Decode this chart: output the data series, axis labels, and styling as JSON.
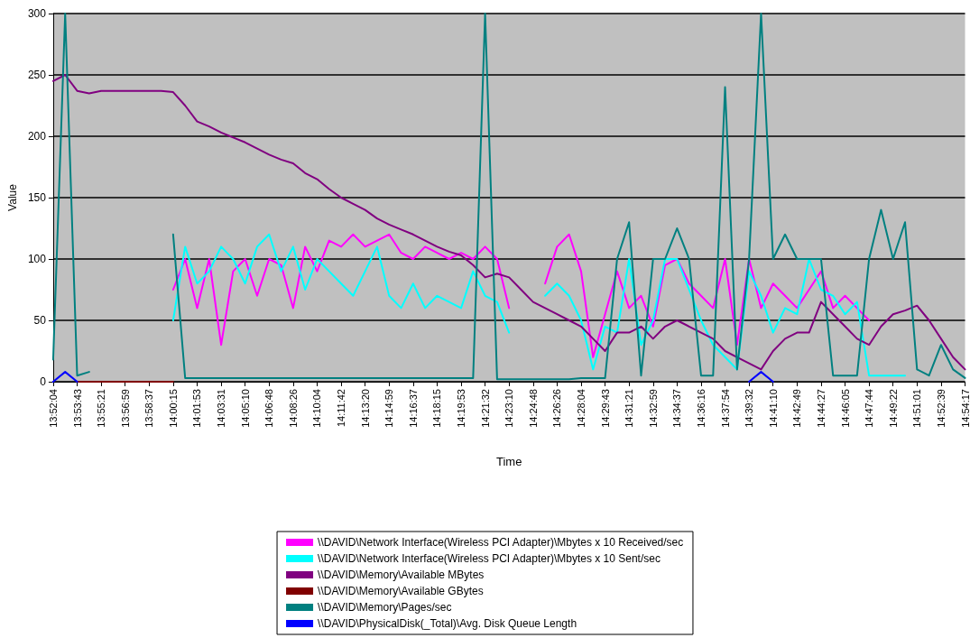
{
  "chart_data": {
    "type": "line",
    "xlabel": "Time",
    "ylabel": "Value",
    "categories": [
      "13:52:04",
      null,
      "13:53:43",
      null,
      "13:55:21",
      null,
      "13:56:59",
      null,
      "13:58:37",
      null,
      "14:00:15",
      null,
      "14:01:53",
      null,
      "14:03:31",
      null,
      "14:05:10",
      null,
      "14:06:48",
      null,
      "14:08:26",
      null,
      "14:10:04",
      null,
      "14:11:42",
      null,
      "14:13:20",
      null,
      "14:14:59",
      null,
      "14:16:37",
      null,
      "14:18:15",
      null,
      "14:19:53",
      null,
      "14:21:32",
      null,
      "14:23:10",
      null,
      "14:24:48",
      null,
      "14:26:26",
      null,
      "14:28:04",
      null,
      "14:29:43",
      null,
      "14:31:21",
      null,
      "14:32:59",
      null,
      "14:34:37",
      null,
      "14:36:16",
      null,
      "14:37:54",
      null,
      "14:39:32",
      null,
      "14:41:10",
      null,
      "14:42:49",
      null,
      "14:44:27",
      null,
      "14:46:05",
      null,
      "14:47:44",
      null,
      "14:49:22",
      null,
      "14:51:01",
      null,
      "14:52:39",
      null,
      "14:54:17"
    ],
    "series": [
      {
        "name": "\\\\DAVID\\Network Interface(Wireless PCI Adapter)\\Mbytes x 10 Received/sec",
        "color": "#ff00ff",
        "values": [
          null,
          null,
          null,
          null,
          null,
          null,
          null,
          null,
          null,
          null,
          75,
          100,
          60,
          100,
          30,
          90,
          100,
          70,
          100,
          95,
          60,
          110,
          90,
          115,
          110,
          120,
          110,
          115,
          120,
          105,
          100,
          110,
          105,
          100,
          105,
          100,
          110,
          100,
          60,
          null,
          null,
          80,
          110,
          120,
          90,
          20,
          55,
          90,
          60,
          70,
          45,
          95,
          100,
          80,
          70,
          60,
          100,
          30,
          100,
          60,
          80,
          70,
          60,
          75,
          90,
          60,
          70,
          60,
          50,
          null,
          null,
          null,
          null,
          null,
          null,
          null,
          null
        ]
      },
      {
        "name": "\\\\DAVID\\Network Interface(Wireless PCI Adapter)\\Mbytes x 10 Sent/sec",
        "color": "#00ffff",
        "values": [
          null,
          null,
          null,
          null,
          null,
          null,
          null,
          null,
          null,
          null,
          50,
          110,
          80,
          90,
          110,
          100,
          80,
          110,
          120,
          90,
          110,
          75,
          100,
          90,
          80,
          70,
          90,
          110,
          70,
          60,
          80,
          60,
          70,
          65,
          60,
          90,
          70,
          65,
          40,
          null,
          null,
          70,
          80,
          70,
          50,
          10,
          45,
          40,
          100,
          30,
          50,
          100,
          100,
          75,
          50,
          30,
          20,
          10,
          90,
          70,
          40,
          60,
          55,
          100,
          75,
          70,
          55,
          65,
          5,
          5,
          5,
          5,
          null,
          null,
          null,
          null,
          null
        ]
      },
      {
        "name": "\\\\DAVID\\Memory\\Available MBytes",
        "color": "#800080",
        "values": [
          245,
          250,
          237,
          235,
          237,
          237,
          237,
          237,
          237,
          237,
          236,
          225,
          212,
          208,
          203,
          199,
          195,
          190,
          185,
          181,
          178,
          170,
          165,
          157,
          150,
          145,
          140,
          133,
          128,
          124,
          120,
          115,
          110,
          106,
          103,
          95,
          85,
          88,
          85,
          75,
          65,
          60,
          55,
          50,
          45,
          35,
          25,
          40,
          40,
          45,
          35,
          45,
          50,
          45,
          40,
          35,
          25,
          20,
          15,
          10,
          25,
          35,
          40,
          40,
          65,
          55,
          45,
          35,
          30,
          45,
          55,
          58,
          62,
          50,
          35,
          20,
          10
        ]
      },
      {
        "name": "\\\\DAVID\\Memory\\Available GBytes",
        "color": "#800000",
        "values": [
          null,
          null,
          0,
          0,
          0,
          0,
          0,
          0,
          0,
          0,
          0,
          null,
          null,
          null,
          null,
          null,
          null,
          null,
          null,
          null,
          null,
          null,
          null,
          null,
          null,
          null,
          null,
          null,
          null,
          null,
          null,
          null,
          null,
          null,
          null,
          null,
          null,
          null,
          null,
          null,
          null,
          null,
          null,
          null,
          null,
          null,
          null,
          null,
          null,
          null,
          null,
          null,
          null,
          null,
          null,
          null,
          null,
          null,
          null,
          null,
          null,
          null,
          null,
          null,
          null,
          null,
          null,
          null,
          null,
          null,
          null,
          null,
          null,
          null,
          null,
          null,
          null
        ]
      },
      {
        "name": "\\\\DAVID\\Memory\\Pages/sec",
        "color": "#008080",
        "values": [
          18,
          300,
          5,
          8,
          null,
          null,
          null,
          null,
          null,
          null,
          120,
          3,
          3,
          3,
          3,
          3,
          3,
          3,
          3,
          3,
          3,
          3,
          3,
          3,
          3,
          3,
          3,
          3,
          3,
          3,
          3,
          3,
          3,
          3,
          3,
          3,
          300,
          2,
          2,
          2,
          2,
          2,
          2,
          2,
          3,
          3,
          3,
          100,
          130,
          5,
          100,
          100,
          125,
          100,
          5,
          5,
          240,
          10,
          100,
          300,
          100,
          120,
          100,
          100,
          100,
          5,
          5,
          5,
          100,
          140,
          100,
          130,
          10,
          5,
          30,
          10,
          3
        ]
      },
      {
        "name": "\\\\DAVID\\PhysicalDisk(_Total)\\Avg. Disk Queue Length",
        "color": "#0000ff",
        "values": [
          0,
          8,
          0,
          null,
          null,
          null,
          null,
          null,
          null,
          null,
          null,
          null,
          null,
          null,
          null,
          null,
          null,
          null,
          null,
          null,
          null,
          null,
          null,
          null,
          null,
          null,
          null,
          null,
          null,
          null,
          null,
          null,
          null,
          null,
          null,
          null,
          null,
          null,
          null,
          null,
          null,
          null,
          null,
          null,
          null,
          null,
          null,
          null,
          null,
          null,
          null,
          null,
          null,
          null,
          null,
          null,
          null,
          null,
          0,
          8,
          0,
          null,
          null,
          null,
          null,
          null,
          null,
          null,
          null,
          null,
          null,
          null,
          null,
          null,
          null,
          null,
          null
        ]
      }
    ],
    "ylim": [
      0,
      300
    ],
    "yticks": [
      0,
      50,
      100,
      150,
      200,
      250,
      300
    ],
    "grid": "y",
    "legend": "bottom",
    "marker": "none",
    "line_style": "solid"
  }
}
